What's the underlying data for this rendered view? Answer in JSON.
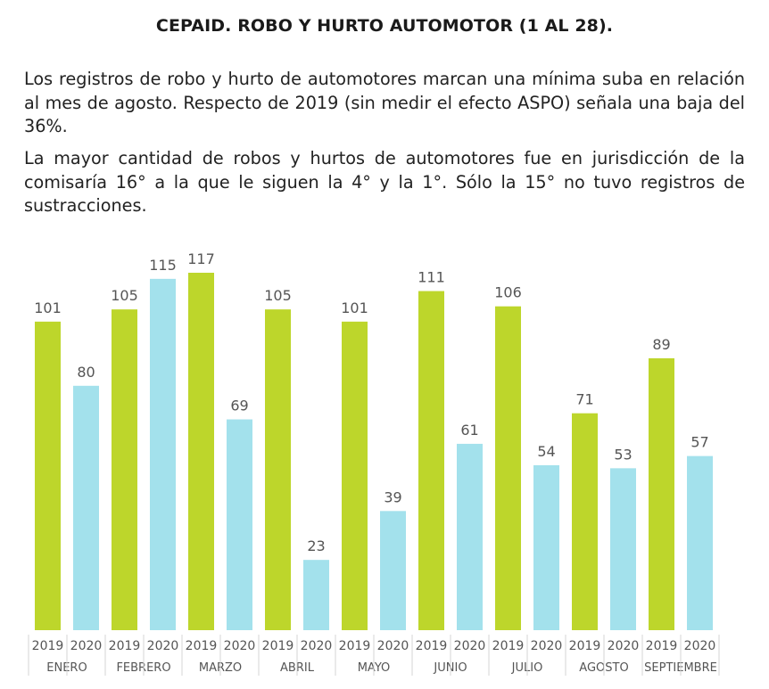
{
  "title": "CEPAID. ROBO Y HURTO AUTOMOTOR (1 AL 28).",
  "paragraphs": [
    "Los registros de robo y hurto de automotores marcan una mínima suba en relación al mes de agosto. Respecto de 2019 (sin medir el efecto ASPO) señala una baja del 36%.",
    "La mayor cantidad de robos y hurtos de automotores fue en jurisdicción de la comisaría 16° a la que le siguen la 4° y la 1°. Sólo la 15° no tuvo registros de sustracciones."
  ],
  "chart_data": {
    "type": "bar",
    "categories": [
      "ENERO",
      "FEBRERO",
      "MARZO",
      "ABRIL",
      "MAYO",
      "JUNIO",
      "JULIO",
      "AGOSTO",
      "SEPTIEMBRE"
    ],
    "series": [
      {
        "name": "2019",
        "color": "#bdd62b",
        "values": [
          101,
          105,
          117,
          105,
          101,
          111,
          106,
          71,
          89
        ]
      },
      {
        "name": "2020",
        "color": "#a3e1ec",
        "values": [
          80,
          115,
          69,
          23,
          39,
          61,
          54,
          53,
          57
        ]
      }
    ],
    "ylim": [
      0,
      117
    ],
    "grid": false,
    "legend": "none"
  }
}
